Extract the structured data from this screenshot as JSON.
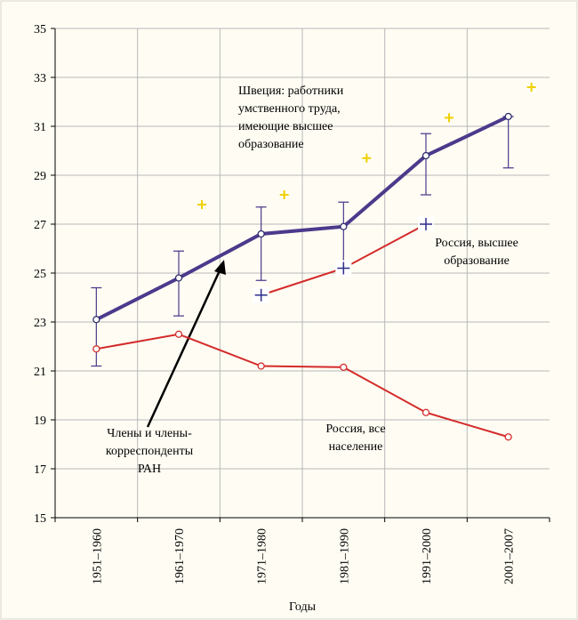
{
  "chart_data": {
    "type": "line",
    "x_label": "Годы",
    "categories": [
      "1951–1960",
      "1961–1970",
      "1971–1980",
      "1981–1990",
      "1991–2000",
      "2001–2007"
    ],
    "ylim": [
      15,
      35
    ],
    "yticks": [
      15,
      17,
      19,
      21,
      23,
      25,
      27,
      29,
      31,
      33,
      35
    ],
    "grid": true,
    "series": [
      {
        "name": "Швеция: работники умственного труда, имеющие высшее образование",
        "color": "#4b3a8c",
        "marker": "circle",
        "line": true,
        "values": [
          23.1,
          24.8,
          26.6,
          26.9,
          29.8,
          31.4
        ],
        "lower": [
          21.2,
          23.25,
          24.7,
          25.4,
          28.2,
          29.3
        ],
        "upper": [
          24.4,
          25.9,
          27.7,
          27.9,
          30.7,
          31.4
        ]
      },
      {
        "name": "Россия, все население",
        "color": "#d42a2a",
        "marker": "circle",
        "line": true,
        "values": [
          21.9,
          22.5,
          21.2,
          21.15,
          19.3,
          18.3
        ]
      },
      {
        "name": "Россия, высшее образование",
        "color": "#d42a2a",
        "marker": "cross",
        "line": true,
        "values": [
          null,
          null,
          24.1,
          25.2,
          27.0,
          null
        ]
      },
      {
        "name": "Члены и члены-корреспонденты РАН",
        "color": "#f0d000",
        "marker": "cross",
        "line": false,
        "values": [
          null,
          27.8,
          28.2,
          29.7,
          31.35,
          32.6
        ]
      }
    ],
    "annotations": [
      {
        "lines": [
          "Швеция: работники",
          "умственного труда,",
          "имеющие высшее",
          "образование"
        ]
      },
      {
        "lines": [
          "Россия, высшее",
          "образование"
        ]
      },
      {
        "lines": [
          "Члены и члены-",
          "корреспонденты",
          "РАН"
        ]
      },
      {
        "lines": [
          "Россия,  все",
          "население"
        ]
      }
    ]
  }
}
